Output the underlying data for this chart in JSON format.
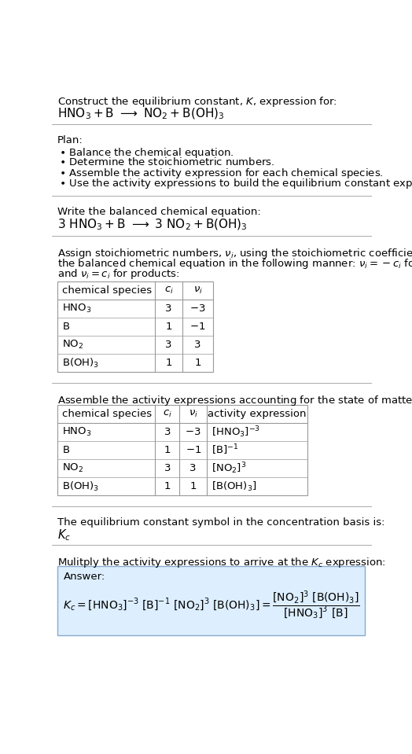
{
  "bg_color": "#ffffff",
  "answer_bg": "#ddeeff",
  "separator_color": "#aaaaaa",
  "table_edge_color": "#999999",
  "font_size": 9.5,
  "sections": {
    "title": {
      "line1": "Construct the equilibrium constant, $K$, expression for:",
      "line2": "$\\mathrm{HNO_3 + B \\longrightarrow NO_2 + B(OH)_3}$"
    },
    "plan": {
      "header": "Plan:",
      "items": [
        "\\bullet\\enspace Balance the chemical equation.",
        "\\bullet\\enspace Determine the stoichiometric numbers.",
        "\\bullet\\enspace Assemble the activity expression for each chemical species.",
        "\\bullet\\enspace Use the activity expressions to build the equilibrium constant expression."
      ]
    },
    "balanced": {
      "header": "Write the balanced chemical equation:",
      "eq": "$\\mathrm{3\\ HNO_3 + B \\longrightarrow 3\\ NO_2 + B(OH)_3}$"
    },
    "stoich": {
      "text_lines": [
        "Assign stoichiometric numbers, $\\nu_i$, using the stoichiometric coefficients, $c_i$, from",
        "the balanced chemical equation in the following manner: $\\nu_i = -c_i$ for reactants",
        "and $\\nu_i = c_i$ for products:"
      ],
      "table_headers": [
        "chemical species",
        "$c_i$",
        "$\\nu_i$"
      ],
      "table_rows": [
        [
          "$\\mathrm{HNO_3}$",
          "3",
          "$-3$"
        ],
        [
          "$\\mathrm{B}$",
          "1",
          "$-1$"
        ],
        [
          "$\\mathrm{NO_2}$",
          "3",
          "3"
        ],
        [
          "$\\mathrm{B(OH)_3}$",
          "1",
          "1"
        ]
      ]
    },
    "activity": {
      "header": "Assemble the activity expressions accounting for the state of matter and $\\nu_i$:",
      "table_headers": [
        "chemical species",
        "$c_i$",
        "$\\nu_i$",
        "activity expression"
      ],
      "table_rows": [
        [
          "$\\mathrm{HNO_3}$",
          "3",
          "$-3$",
          "$[\\mathrm{HNO_3}]^{-3}$"
        ],
        [
          "$\\mathrm{B}$",
          "1",
          "$-1$",
          "$[\\mathrm{B}]^{-1}$"
        ],
        [
          "$\\mathrm{NO_2}$",
          "3",
          "3",
          "$[\\mathrm{NO_2}]^3$"
        ],
        [
          "$\\mathrm{B(OH)_3}$",
          "1",
          "1",
          "$[\\mathrm{B(OH)_3}]$"
        ]
      ]
    },
    "kc": {
      "header": "The equilibrium constant symbol in the concentration basis is:",
      "symbol": "$K_c$"
    },
    "answer": {
      "header": "Mulitply the activity expressions to arrive at the $K_c$ expression:",
      "label": "Answer:",
      "eq": "$K_c = [\\mathrm{HNO_3}]^{-3}\\ [\\mathrm{B}]^{-1}\\ [\\mathrm{NO_2}]^3\\ [\\mathrm{B(OH)_3}] = \\dfrac{[\\mathrm{NO_2}]^3\\ [\\mathrm{B(OH)_3}]}{[\\mathrm{HNO_3}]^3\\ [\\mathrm{B}]}$"
    }
  }
}
